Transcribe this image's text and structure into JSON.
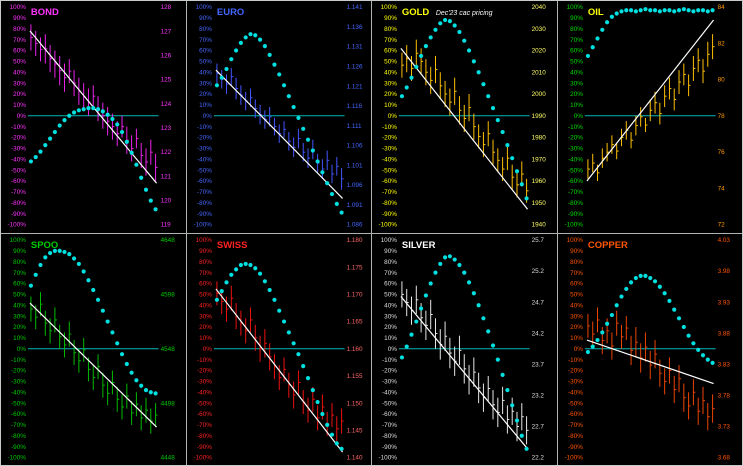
{
  "page": {
    "background": "#000000",
    "panel_border_color": "#aeb2b2",
    "trend_color": "#ffffff",
    "zero_line_color": "#00b8b8",
    "default_dot_color": "#00e0e0"
  },
  "left_axis_labels": [
    "100%",
    "90%",
    "80%",
    "70%",
    "60%",
    "50%",
    "40%",
    "30%",
    "20%",
    "10%",
    "0%",
    "-10%",
    "-20%",
    "-30%",
    "-40%",
    "-50%",
    "-60%",
    "-70%",
    "-80%",
    "-90%",
    "-100%"
  ],
  "chart_data": [
    {
      "type": "line",
      "title": "BOND",
      "annotation": "",
      "annotation_color": "#ffffff",
      "title_color": "#ff33ff",
      "left_axis_color": "#ff33ff",
      "right_axis_color": "#ff33ff",
      "bar_color": "#ee22ee",
      "dot_color": "#00e0e0",
      "left_axis_range": [
        100,
        -100
      ],
      "right_axis": [
        "128",
        "127",
        "126",
        "125",
        "124",
        "123",
        "122",
        "121",
        "120",
        "119"
      ],
      "oscillator_pct": [
        -42,
        -38,
        -33,
        -27,
        -21,
        -15,
        -9,
        -4,
        0,
        3,
        5,
        6,
        7,
        7,
        6,
        4,
        1,
        -3,
        -8,
        -15,
        -24,
        -34,
        -45,
        -57,
        -68,
        -78,
        -86
      ],
      "bars_hi_lo_pct": [
        [
          84,
          60
        ],
        [
          78,
          55
        ],
        [
          72,
          50
        ],
        [
          75,
          48
        ],
        [
          65,
          40
        ],
        [
          60,
          35
        ],
        [
          55,
          28
        ],
        [
          48,
          22
        ],
        [
          52,
          30
        ],
        [
          42,
          18
        ],
        [
          35,
          10
        ],
        [
          30,
          5
        ],
        [
          25,
          0
        ],
        [
          28,
          8
        ],
        [
          18,
          -5
        ],
        [
          12,
          -12
        ],
        [
          8,
          -18
        ],
        [
          2,
          -22
        ],
        [
          -5,
          -28
        ],
        [
          0,
          -20
        ],
        [
          -10,
          -35
        ],
        [
          -18,
          -42
        ],
        [
          -12,
          -30
        ],
        [
          -25,
          -48
        ],
        [
          -30,
          -55
        ],
        [
          -22,
          -45
        ],
        [
          -35,
          -60
        ]
      ],
      "trendline_pct": {
        "start": 78,
        "end": -62
      }
    },
    {
      "type": "line",
      "title": "EURO",
      "annotation": "",
      "annotation_color": "#ffffff",
      "title_color": "#4466ff",
      "left_axis_color": "#4466ff",
      "right_axis_color": "#4466ff",
      "bar_color": "#4455ff",
      "dot_color": "#00e0e0",
      "left_axis_range": [
        100,
        -100
      ],
      "right_axis": [
        "1.141",
        "1.136",
        "1.131",
        "1.126",
        "1.121",
        "1.116",
        "1.111",
        "1.106",
        "1.101",
        "1.096",
        "1.091",
        "1.086"
      ],
      "oscillator_pct": [
        28,
        35,
        43,
        52,
        60,
        67,
        72,
        75,
        74,
        70,
        64,
        56,
        47,
        38,
        28,
        18,
        8,
        -2,
        -12,
        -22,
        -32,
        -42,
        -52,
        -62,
        -72,
        -81,
        -89
      ],
      "bars_hi_lo_pct": [
        [
          48,
          30
        ],
        [
          42,
          25
        ],
        [
          38,
          20
        ],
        [
          44,
          28
        ],
        [
          35,
          15
        ],
        [
          28,
          10
        ],
        [
          22,
          5
        ],
        [
          25,
          8
        ],
        [
          15,
          -2
        ],
        [
          10,
          -8
        ],
        [
          5,
          -12
        ],
        [
          8,
          -10
        ],
        [
          -2,
          -18
        ],
        [
          -8,
          -25
        ],
        [
          -5,
          -20
        ],
        [
          -15,
          -32
        ],
        [
          -20,
          -38
        ],
        [
          -12,
          -30
        ],
        [
          -25,
          -42
        ],
        [
          -30,
          -48
        ],
        [
          -22,
          -40
        ],
        [
          -35,
          -52
        ],
        [
          -40,
          -58
        ],
        [
          -32,
          -50
        ],
        [
          -45,
          -62
        ],
        [
          -38,
          -55
        ],
        [
          -48,
          -68
        ]
      ],
      "trendline_pct": {
        "start": 42,
        "end": -76
      }
    },
    {
      "type": "line",
      "title": "GOLD",
      "annotation": "Dec'23 cac pricing",
      "annotation_color": "#ffffff",
      "title_color": "#ffff00",
      "left_axis_color": "#ffff00",
      "right_axis_color": "#ffff66",
      "bar_color": "#ffc000",
      "dot_color": "#00e0e0",
      "left_axis_range": [
        100,
        -100
      ],
      "right_axis": [
        "2040",
        "2030",
        "2020",
        "2010",
        "2000",
        "1990",
        "1980",
        "1970",
        "1960",
        "1950",
        "1940"
      ],
      "oscillator_pct": [
        18,
        26,
        35,
        45,
        55,
        64,
        72,
        79,
        85,
        88,
        87,
        83,
        77,
        69,
        60,
        50,
        40,
        29,
        18,
        7,
        -4,
        -15,
        -27,
        -39,
        -51,
        -63,
        -76
      ],
      "bars_hi_lo_pct": [
        [
          58,
          35
        ],
        [
          65,
          40
        ],
        [
          55,
          32
        ],
        [
          70,
          45
        ],
        [
          62,
          38
        ],
        [
          52,
          28
        ],
        [
          45,
          20
        ],
        [
          55,
          30
        ],
        [
          40,
          15
        ],
        [
          32,
          8
        ],
        [
          25,
          0
        ],
        [
          35,
          10
        ],
        [
          18,
          -8
        ],
        [
          10,
          -15
        ],
        [
          20,
          -5
        ],
        [
          2,
          -22
        ],
        [
          -8,
          -30
        ],
        [
          -15,
          -38
        ],
        [
          -5,
          -28
        ],
        [
          -22,
          -45
        ],
        [
          -30,
          -52
        ],
        [
          -38,
          -60
        ],
        [
          -28,
          -50
        ],
        [
          -45,
          -68
        ],
        [
          -52,
          -75
        ],
        [
          -42,
          -65
        ],
        [
          -58,
          -80
        ]
      ],
      "trendline_pct": {
        "start": 62,
        "end": -86
      }
    },
    {
      "type": "line",
      "title": "OIL",
      "annotation": "",
      "annotation_color": "#ffffff",
      "title_color": "#ffff00",
      "left_axis_color": "#00dd00",
      "right_axis_color": "#ff9900",
      "bar_color": "#ffc000",
      "dot_color": "#00e0e0",
      "left_axis_range": [
        100,
        -100
      ],
      "right_axis": [
        "84",
        "82",
        "80",
        "78",
        "76",
        "74",
        "72"
      ],
      "oscillator_pct": [
        55,
        63,
        71,
        79,
        86,
        91,
        94,
        96,
        97,
        97,
        96,
        97,
        98,
        97,
        97,
        96,
        97,
        97,
        96,
        97,
        98,
        97,
        96,
        97,
        97,
        96,
        97
      ],
      "bars_hi_lo_pct": [
        [
          -40,
          -58
        ],
        [
          -35,
          -52
        ],
        [
          -45,
          -60
        ],
        [
          -30,
          -48
        ],
        [
          -25,
          -42
        ],
        [
          -18,
          -35
        ],
        [
          -25,
          -40
        ],
        [
          -12,
          -28
        ],
        [
          -5,
          -22
        ],
        [
          -15,
          -30
        ],
        [
          0,
          -18
        ],
        [
          8,
          -10
        ],
        [
          -2,
          -15
        ],
        [
          15,
          -5
        ],
        [
          22,
          2
        ],
        [
          12,
          -8
        ],
        [
          28,
          8
        ],
        [
          35,
          15
        ],
        [
          25,
          5
        ],
        [
          42,
          20
        ],
        [
          48,
          28
        ],
        [
          38,
          18
        ],
        [
          55,
          32
        ],
        [
          62,
          40
        ],
        [
          52,
          30
        ],
        [
          68,
          45
        ],
        [
          75,
          52
        ]
      ],
      "trendline_pct": {
        "start": -60,
        "end": 88
      }
    },
    {
      "type": "line",
      "title": "SPOO",
      "annotation": "",
      "annotation_color": "#ffffff",
      "title_color": "#00cc00",
      "left_axis_color": "#00cc00",
      "right_axis_color": "#00cc00",
      "bar_color": "#00bb00",
      "dot_color": "#00e0e0",
      "left_axis_range": [
        100,
        -100
      ],
      "right_axis": [
        "4648",
        "4598",
        "4548",
        "4498",
        "4448"
      ],
      "oscillator_pct": [
        58,
        68,
        77,
        84,
        88,
        90,
        90,
        89,
        87,
        83,
        78,
        71,
        63,
        54,
        45,
        35,
        25,
        15,
        5,
        -5,
        -14,
        -22,
        -29,
        -34,
        -38,
        -40,
        -41
      ],
      "bars_hi_lo_pct": [
        [
          48,
          25
        ],
        [
          40,
          18
        ],
        [
          52,
          30
        ],
        [
          35,
          12
        ],
        [
          28,
          5
        ],
        [
          38,
          15
        ],
        [
          22,
          0
        ],
        [
          15,
          -8
        ],
        [
          25,
          2
        ],
        [
          8,
          -15
        ],
        [
          0,
          -22
        ],
        [
          10,
          -12
        ],
        [
          -8,
          -30
        ],
        [
          -15,
          -38
        ],
        [
          -5,
          -28
        ],
        [
          -22,
          -45
        ],
        [
          -30,
          -52
        ],
        [
          -20,
          -42
        ],
        [
          -35,
          -58
        ],
        [
          -42,
          -65
        ],
        [
          -32,
          -55
        ],
        [
          -48,
          -70
        ],
        [
          -40,
          -62
        ],
        [
          -52,
          -75
        ],
        [
          -45,
          -68
        ],
        [
          -55,
          -78
        ],
        [
          -50,
          -72
        ]
      ],
      "trendline_pct": {
        "start": 42,
        "end": -72
      }
    },
    {
      "type": "line",
      "title": "SWISS",
      "annotation": "",
      "annotation_color": "#ffffff",
      "title_color": "#ff2222",
      "left_axis_color": "#ff2222",
      "right_axis_color": "#ff6666",
      "bar_color": "#ee1111",
      "dot_color": "#00e0e0",
      "left_axis_range": [
        100,
        -100
      ],
      "right_axis": [
        "1.180",
        "1.175",
        "1.170",
        "1.165",
        "1.160",
        "1.155",
        "1.150",
        "1.145",
        "1.140"
      ],
      "oscillator_pct": [
        45,
        53,
        61,
        68,
        73,
        77,
        78,
        77,
        74,
        69,
        62,
        54,
        45,
        35,
        25,
        15,
        5,
        -5,
        -16,
        -27,
        -38,
        -49,
        -60,
        -70,
        -79,
        -87,
        -92
      ],
      "bars_hi_lo_pct": [
        [
          62,
          40
        ],
        [
          55,
          32
        ],
        [
          48,
          25
        ],
        [
          58,
          35
        ],
        [
          42,
          18
        ],
        [
          35,
          12
        ],
        [
          28,
          5
        ],
        [
          38,
          15
        ],
        [
          22,
          -2
        ],
        [
          12,
          -12
        ],
        [
          18,
          -8
        ],
        [
          5,
          -20
        ],
        [
          -5,
          -28
        ],
        [
          -15,
          -38
        ],
        [
          -8,
          -30
        ],
        [
          -22,
          -45
        ],
        [
          -30,
          -55
        ],
        [
          -20,
          -42
        ],
        [
          -38,
          -60
        ],
        [
          -45,
          -68
        ],
        [
          -35,
          -58
        ],
        [
          -52,
          -75
        ],
        [
          -42,
          -65
        ],
        [
          -58,
          -80
        ],
        [
          -50,
          -72
        ],
        [
          -62,
          -85
        ],
        [
          -55,
          -78
        ]
      ],
      "trendline_pct": {
        "start": 55,
        "end": -95
      }
    },
    {
      "type": "line",
      "title": "SILVER",
      "annotation": "",
      "annotation_color": "#ffffff",
      "title_color": "#ffffff",
      "left_axis_color": "#dddddd",
      "right_axis_color": "#dddddd",
      "bar_color": "#e8e8e8",
      "dot_color": "#00e0e0",
      "left_axis_range": [
        100,
        -100
      ],
      "right_axis": [
        "25.7",
        "25.2",
        "24.7",
        "24.2",
        "23.7",
        "23.2",
        "22.7",
        "22.2"
      ],
      "oscillator_pct": [
        -8,
        2,
        13,
        25,
        37,
        49,
        60,
        70,
        78,
        84,
        85,
        82,
        77,
        70,
        61,
        51,
        40,
        28,
        16,
        3,
        -10,
        -24,
        -38,
        -52,
        -66,
        -80,
        -92
      ],
      "bars_hi_lo_pct": [
        [
          62,
          38
        ],
        [
          55,
          30
        ],
        [
          48,
          22
        ],
        [
          58,
          32
        ],
        [
          42,
          15
        ],
        [
          35,
          8
        ],
        [
          45,
          18
        ],
        [
          28,
          0
        ],
        [
          18,
          -10
        ],
        [
          25,
          -2
        ],
        [
          10,
          -18
        ],
        [
          2,
          -25
        ],
        [
          12,
          -15
        ],
        [
          -5,
          -32
        ],
        [
          -15,
          -42
        ],
        [
          -8,
          -35
        ],
        [
          -22,
          -50
        ],
        [
          -32,
          -58
        ],
        [
          -25,
          -48
        ],
        [
          -38,
          -65
        ],
        [
          -45,
          -72
        ],
        [
          -35,
          -60
        ],
        [
          -52,
          -78
        ],
        [
          -45,
          -70
        ],
        [
          -58,
          -85
        ],
        [
          -50,
          -75
        ],
        [
          -62,
          -88
        ]
      ],
      "trendline_pct": {
        "start": 48,
        "end": -92
      }
    },
    {
      "type": "line",
      "title": "COPPER",
      "annotation": "",
      "annotation_color": "#ffffff",
      "title_color": "#ff5500",
      "left_axis_color": "#ff5500",
      "right_axis_color": "#ff5500",
      "bar_color": "#ee4400",
      "dot_color": "#00e0e0",
      "left_axis_range": [
        100,
        -100
      ],
      "right_axis": [
        "4.03",
        "3.98",
        "3.93",
        "3.88",
        "3.83",
        "3.78",
        "3.73",
        "3.68"
      ],
      "oscillator_pct": [
        -3,
        2,
        8,
        15,
        23,
        31,
        40,
        48,
        55,
        61,
        65,
        67,
        67,
        65,
        62,
        57,
        51,
        44,
        36,
        28,
        20,
        12,
        5,
        -1,
        -6,
        -10,
        -13
      ],
      "bars_hi_lo_pct": [
        [
          32,
          10
        ],
        [
          25,
          2
        ],
        [
          38,
          15
        ],
        [
          20,
          -5
        ],
        [
          28,
          5
        ],
        [
          15,
          -10
        ],
        [
          35,
          12
        ],
        [
          22,
          0
        ],
        [
          30,
          8
        ],
        [
          12,
          -15
        ],
        [
          20,
          -8
        ],
        [
          5,
          -22
        ],
        [
          15,
          -12
        ],
        [
          -2,
          -28
        ],
        [
          8,
          -18
        ],
        [
          -10,
          -35
        ],
        [
          -18,
          -42
        ],
        [
          -8,
          -32
        ],
        [
          -25,
          -50
        ],
        [
          -15,
          -40
        ],
        [
          -32,
          -58
        ],
        [
          -40,
          -65
        ],
        [
          -28,
          -52
        ],
        [
          -45,
          -70
        ],
        [
          -35,
          -60
        ],
        [
          -50,
          -75
        ],
        [
          -42,
          -68
        ]
      ],
      "trendline_pct": {
        "start": 8,
        "end": -32
      }
    }
  ]
}
